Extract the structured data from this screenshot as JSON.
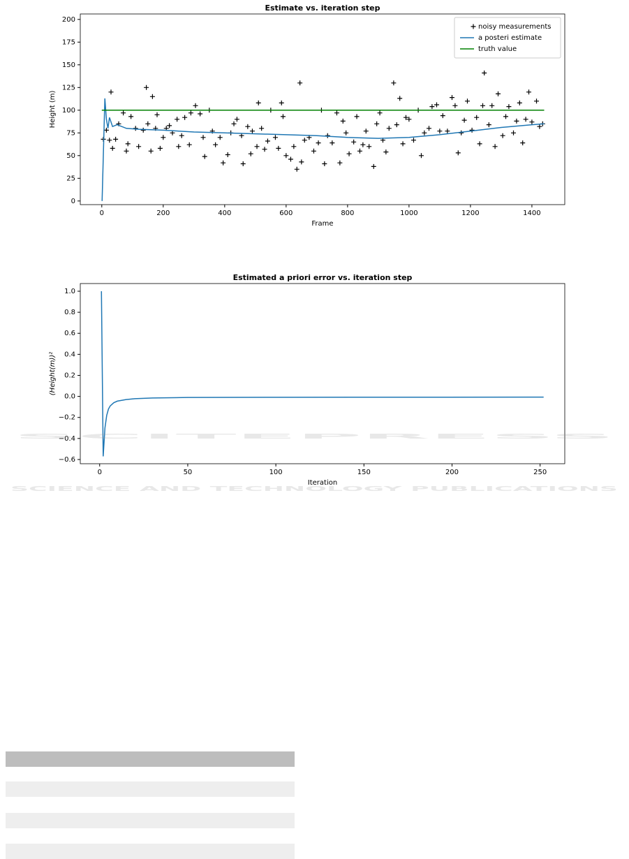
{
  "chart_data": [
    {
      "type": "line",
      "title": "Estimate vs. iteration step",
      "xlabel": "Frame",
      "ylabel": "Height (m)",
      "xlim": [
        -70,
        1507
      ],
      "ylim": [
        -4,
        206
      ],
      "xticks": [
        0,
        200,
        400,
        600,
        800,
        1000,
        1200,
        1400
      ],
      "yticks": [
        0,
        25,
        50,
        75,
        100,
        125,
        150,
        175,
        200
      ],
      "legend": "upper right",
      "series": [
        {
          "name": "noisy measurements",
          "type": "scatter",
          "color": "#000000",
          "x": [
            5,
            15,
            25,
            30,
            35,
            45,
            55,
            70,
            80,
            85,
            95,
            110,
            120,
            135,
            145,
            150,
            160,
            165,
            175,
            180,
            190,
            200,
            210,
            220,
            230,
            245,
            250,
            260,
            270,
            285,
            290,
            305,
            320,
            330,
            335,
            350,
            360,
            370,
            385,
            395,
            410,
            420,
            430,
            440,
            455,
            460,
            475,
            485,
            490,
            505,
            510,
            520,
            530,
            540,
            550,
            565,
            575,
            585,
            590,
            600,
            615,
            625,
            635,
            645,
            650,
            660,
            675,
            690,
            705,
            715,
            725,
            735,
            750,
            765,
            775,
            785,
            795,
            805,
            820,
            830,
            840,
            850,
            860,
            870,
            885,
            895,
            905,
            915,
            925,
            935,
            950,
            960,
            970,
            980,
            990,
            1000,
            1015,
            1030,
            1040,
            1050,
            1065,
            1075,
            1090,
            1100,
            1110,
            1125,
            1140,
            1150,
            1160,
            1170,
            1180,
            1190,
            1205,
            1220,
            1230,
            1240,
            1245,
            1260,
            1270,
            1280,
            1290,
            1305,
            1315,
            1325,
            1340,
            1350,
            1360,
            1370,
            1380,
            1390,
            1400,
            1415,
            1425,
            1435
          ],
          "values": [
            68,
            78,
            67,
            120,
            58,
            68,
            85,
            97,
            55,
            63,
            93,
            80,
            60,
            78,
            125,
            85,
            55,
            115,
            80,
            95,
            58,
            70,
            80,
            83,
            75,
            90,
            60,
            72,
            92,
            62,
            97,
            105,
            96,
            70,
            49,
            100,
            77,
            62,
            70,
            42,
            51,
            75,
            85,
            90,
            72,
            41,
            82,
            52,
            77,
            60,
            108,
            80,
            57,
            66,
            100,
            70,
            58,
            108,
            93,
            50,
            46,
            60,
            35,
            130,
            43,
            67,
            70,
            55,
            64,
            100,
            41,
            72,
            64,
            97,
            42,
            88,
            75,
            52,
            65,
            93,
            55,
            62,
            77,
            60,
            38,
            85,
            97,
            67,
            54,
            80,
            130,
            84,
            113,
            63,
            92,
            90,
            67,
            100,
            50,
            75,
            80,
            104,
            106,
            77,
            94,
            77,
            114,
            105,
            53,
            75,
            89,
            110,
            78,
            92,
            63,
            105,
            141,
            84,
            105,
            60,
            118,
            72,
            93,
            104,
            75,
            88,
            108,
            64,
            90,
            120,
            87,
            110,
            82,
            85
          ]
        },
        {
          "name": "a posteri estimate",
          "type": "line",
          "color": "#1f77b4",
          "x": [
            1,
            10,
            15,
            20,
            25,
            35,
            50,
            80,
            120,
            200,
            300,
            400,
            500,
            600,
            700,
            800,
            900,
            1000,
            1100,
            1200,
            1300,
            1400,
            1440
          ],
          "values": [
            0,
            113,
            90,
            80,
            92,
            82,
            84,
            80,
            79,
            78,
            76,
            75,
            74,
            73,
            72,
            70,
            69,
            70,
            73,
            77,
            81,
            84,
            85
          ]
        },
        {
          "name": "truth value",
          "type": "line",
          "color": "#008000",
          "x": [
            0,
            1440
          ],
          "values": [
            100,
            100
          ]
        }
      ]
    },
    {
      "type": "line",
      "title": "Estimated a priori error vs. iteration step",
      "xlabel": "Iteration",
      "ylabel": "(Height(m))²",
      "xlim": [
        -11,
        264
      ],
      "ylim": [
        -0.64,
        1.073
      ],
      "xticks": [
        0,
        50,
        100,
        150,
        200,
        250
      ],
      "yticks": [
        {
          "value": -0.6,
          "label": "−0.6"
        },
        {
          "value": -0.4,
          "label": "−0.4"
        },
        {
          "value": -0.2,
          "label": "−0.2"
        },
        {
          "value": 0,
          "label": "0.0"
        },
        0.2,
        0.4,
        0.6,
        0.8,
        {
          "value": 1,
          "label": "1.0"
        }
      ],
      "series": [
        {
          "type": "line",
          "color": "#1f77b4",
          "x": [
            1,
            2,
            3,
            4,
            5,
            6,
            8,
            10,
            15,
            20,
            30,
            50,
            100,
            252
          ],
          "values": [
            1.0,
            -0.57,
            -0.3,
            -0.18,
            -0.12,
            -0.09,
            -0.06,
            -0.045,
            -0.03,
            -0.022,
            -0.015,
            -0.01,
            -0.008,
            -0.007
          ]
        }
      ]
    }
  ],
  "watermark": [
    "SCITEPRESS",
    "SCIENCE AND TECHNOLOGY PUBLICATIONS"
  ]
}
